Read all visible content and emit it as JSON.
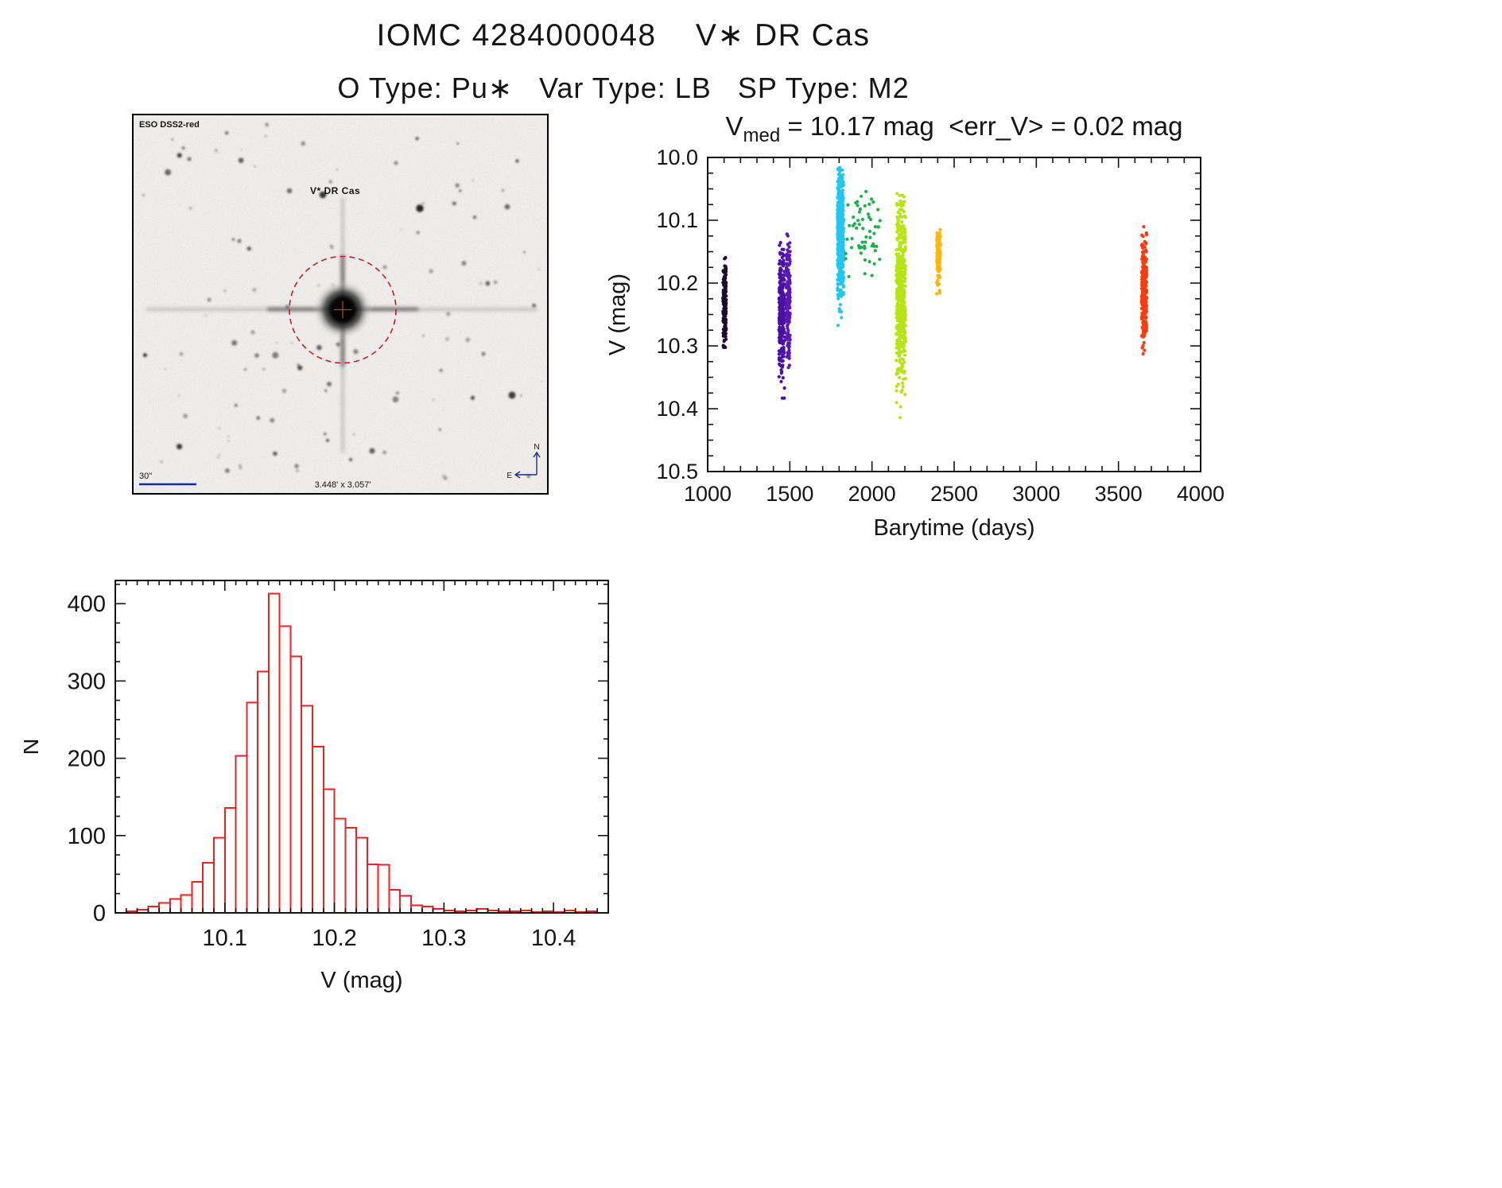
{
  "page": {
    "title": "IOMC 4284000048    V∗ DR Cas",
    "subtitle": "O Type: Pu∗   Var Type: LB   SP Type: M2"
  },
  "finding_chart": {
    "survey_label": "ESO DSS2-red",
    "target_label": "V* DR Cas",
    "scale_label": "30\"",
    "fov_label": "3.448' x 3.057'",
    "north_label": "N",
    "east_label": "E",
    "marker_color": "#cb1d1d",
    "annotation_color": "#1b2a9e"
  },
  "chart_data": [
    {
      "type": "scatter",
      "title": {
        "var": "V",
        "sub": "med",
        "rest": " = 10.17 mag  <err_V> = 0.02 mag"
      },
      "stats": {
        "v_med_mag": 10.17,
        "err_v_mag": 0.02
      },
      "xlabel": "Barytime (days)",
      "ylabel": "V (mag)",
      "xlim": [
        1000,
        4000
      ],
      "ylim_top": 10.0,
      "ylim_bottom": 10.5,
      "y_direction": "inverted-magnitude",
      "xticks": [
        1000,
        1500,
        2000,
        2500,
        3000,
        3500,
        4000
      ],
      "xtick_labels": [
        "1000",
        "1500",
        "2000",
        "2500",
        "3000",
        "3500",
        "4000"
      ],
      "yticks": [
        10.0,
        10.1,
        10.2,
        10.3,
        10.4,
        10.5
      ],
      "ytick_labels": [
        "10.0",
        "10.1",
        "10.2",
        "10.3",
        "10.4",
        "10.5"
      ],
      "x_minor_step": 100,
      "y_minor_step": 0.025,
      "grid": false,
      "legend": "none",
      "clusters": [
        {
          "name": "epoch-1",
          "color": "#1f0a2e",
          "x_min": 1093,
          "x_max": 1113,
          "v_mean": 10.235,
          "v_sigma": 0.038,
          "v_lo": 10.15,
          "v_hi": 10.305,
          "n": 170
        },
        {
          "name": "epoch-2a",
          "color": "#4a10a2",
          "x_min": 1434,
          "x_max": 1468,
          "v_mean": 10.255,
          "v_sigma": 0.055,
          "v_lo": 10.13,
          "v_hi": 10.42,
          "n": 270
        },
        {
          "name": "epoch-2b",
          "color": "#5a18b8",
          "x_min": 1478,
          "x_max": 1502,
          "v_mean": 10.215,
          "v_sigma": 0.05,
          "v_lo": 10.12,
          "v_hi": 10.36,
          "n": 170
        },
        {
          "name": "epoch-3",
          "color": "#1fc8f2",
          "x_min": 1790,
          "x_max": 1828,
          "v_mean": 10.125,
          "v_sigma": 0.052,
          "v_lo": 10.015,
          "v_hi": 10.285,
          "n": 520
        },
        {
          "name": "epoch-4",
          "color": "#1cb14a",
          "x_min": 1840,
          "x_max": 2065,
          "v_mean": 10.115,
          "v_sigma": 0.038,
          "v_lo": 10.04,
          "v_hi": 10.2,
          "n": 60
        },
        {
          "name": "epoch-5",
          "color": "#b8e414",
          "x_min": 2148,
          "x_max": 2204,
          "v_mean": 10.21,
          "v_sigma": 0.07,
          "v_lo": 10.055,
          "v_hi": 10.43,
          "n": 520
        },
        {
          "name": "epoch-6",
          "color": "#ffb607",
          "x_min": 2394,
          "x_max": 2418,
          "v_mean": 10.155,
          "v_sigma": 0.026,
          "v_lo": 10.115,
          "v_hi": 10.225,
          "n": 110
        },
        {
          "name": "epoch-7",
          "color": "#fb3c0e",
          "x_min": 3640,
          "x_max": 3672,
          "v_mean": 10.215,
          "v_sigma": 0.045,
          "v_lo": 10.11,
          "v_hi": 10.315,
          "n": 240
        }
      ]
    },
    {
      "type": "histogram",
      "xlabel": "V (mag)",
      "ylabel": "N",
      "xlim": [
        10.0,
        10.45
      ],
      "ylim": [
        0,
        430
      ],
      "xticks": [
        10.1,
        10.2,
        10.3,
        10.4
      ],
      "xtick_labels": [
        "10.1",
        "10.2",
        "10.3",
        "10.4"
      ],
      "yticks": [
        0,
        100,
        200,
        300,
        400
      ],
      "ytick_labels": [
        "0",
        "100",
        "200",
        "300",
        "400"
      ],
      "x_minor_step": 0.01,
      "y_minor_step": 25,
      "grid": false,
      "bar_color": "#ee2222",
      "bin_start": 10.01,
      "bin_width": 0.01,
      "counts": [
        2,
        4,
        8,
        13,
        18,
        23,
        40,
        65,
        97,
        136,
        203,
        272,
        312,
        413,
        371,
        332,
        268,
        215,
        160,
        122,
        110,
        97,
        63,
        62,
        30,
        22,
        10,
        8,
        5,
        3,
        2,
        3,
        5,
        3,
        2,
        2,
        3,
        1,
        2,
        1,
        3,
        1,
        2
      ]
    }
  ]
}
